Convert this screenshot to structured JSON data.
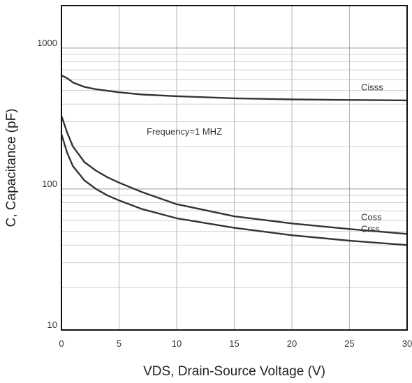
{
  "chart_data": {
    "type": "line",
    "title": "",
    "xlabel": "VDS, Drain-Source Voltage (V)",
    "ylabel": "C, Capacitance (pF)",
    "xlim": [
      0,
      30
    ],
    "ylim": [
      10,
      2000
    ],
    "yscale": "log",
    "grid": true,
    "x_ticks": [
      0,
      5,
      10,
      15,
      20,
      25,
      30
    ],
    "x_tick_labels": [
      "0",
      "5",
      "10",
      "15",
      "20",
      "25",
      "30"
    ],
    "y_ticks": [
      10,
      100,
      1000
    ],
    "y_tick_labels": [
      "10",
      "100",
      "1000"
    ],
    "annotation": "Frequency=1 MHZ",
    "series": [
      {
        "name": "Cisss",
        "x": [
          0,
          0.5,
          1,
          2,
          3,
          5,
          7,
          10,
          15,
          20,
          25,
          30
        ],
        "y": [
          640,
          610,
          570,
          530,
          510,
          485,
          468,
          455,
          440,
          432,
          428,
          425
        ]
      },
      {
        "name": "Coss",
        "x": [
          0,
          0.5,
          1,
          2,
          3,
          4,
          5,
          7,
          10,
          15,
          20,
          25,
          30
        ],
        "y": [
          330,
          250,
          200,
          155,
          135,
          121,
          111,
          95,
          78,
          64,
          57,
          52,
          48
        ]
      },
      {
        "name": "Crss",
        "x": [
          0,
          0.5,
          1,
          2,
          3,
          4,
          5,
          7,
          10,
          15,
          20,
          25,
          30
        ],
        "y": [
          245,
          180,
          145,
          115,
          100,
          90,
          83,
          72,
          62,
          53,
          47,
          43,
          40
        ]
      }
    ]
  }
}
